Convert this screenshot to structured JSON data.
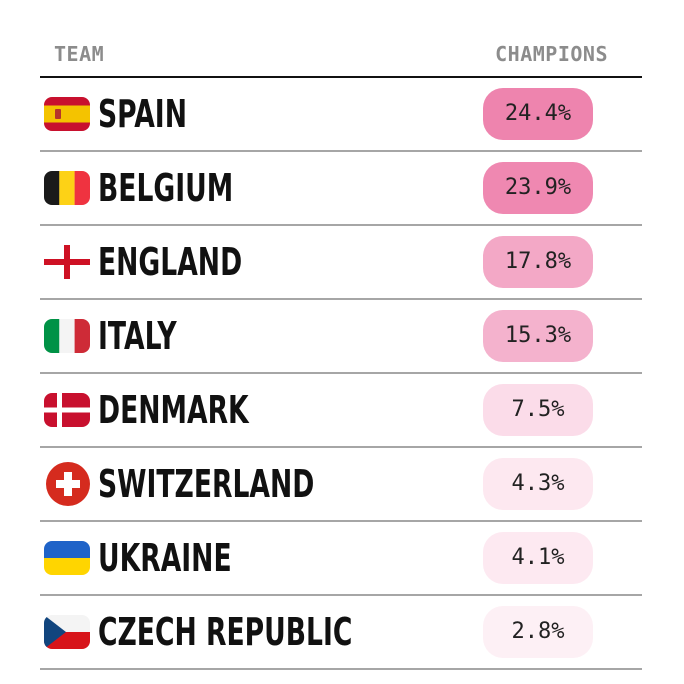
{
  "header": {
    "team": "TEAM",
    "champions": "CHAMPIONS"
  },
  "teams": [
    {
      "name": "SPAIN",
      "champions": "24.4%",
      "flag_icon": "spain-flag-icon",
      "pill_color": "#ee84ae"
    },
    {
      "name": "BELGIUM",
      "champions": "23.9%",
      "flag_icon": "belgium-flag-icon",
      "pill_color": "#ef88b1"
    },
    {
      "name": "ENGLAND",
      "champions": "17.8%",
      "flag_icon": "england-flag-icon",
      "pill_color": "#f3a8c6"
    },
    {
      "name": "ITALY",
      "champions": "15.3%",
      "flag_icon": "italy-flag-icon",
      "pill_color": "#f4b2cd"
    },
    {
      "name": "DENMARK",
      "champions": "7.5%",
      "flag_icon": "denmark-flag-icon",
      "pill_color": "#fbdce9"
    },
    {
      "name": "SWITZERLAND",
      "champions": "4.3%",
      "flag_icon": "switzerland-flag-icon",
      "pill_color": "#fde8f0"
    },
    {
      "name": "UKRAINE",
      "champions": "4.1%",
      "flag_icon": "ukraine-flag-icon",
      "pill_color": "#fde9f1"
    },
    {
      "name": "CZECH REPUBLIC",
      "champions": "2.8%",
      "flag_icon": "czech-republic-flag-icon",
      "pill_color": "#fdf0f5"
    }
  ]
}
